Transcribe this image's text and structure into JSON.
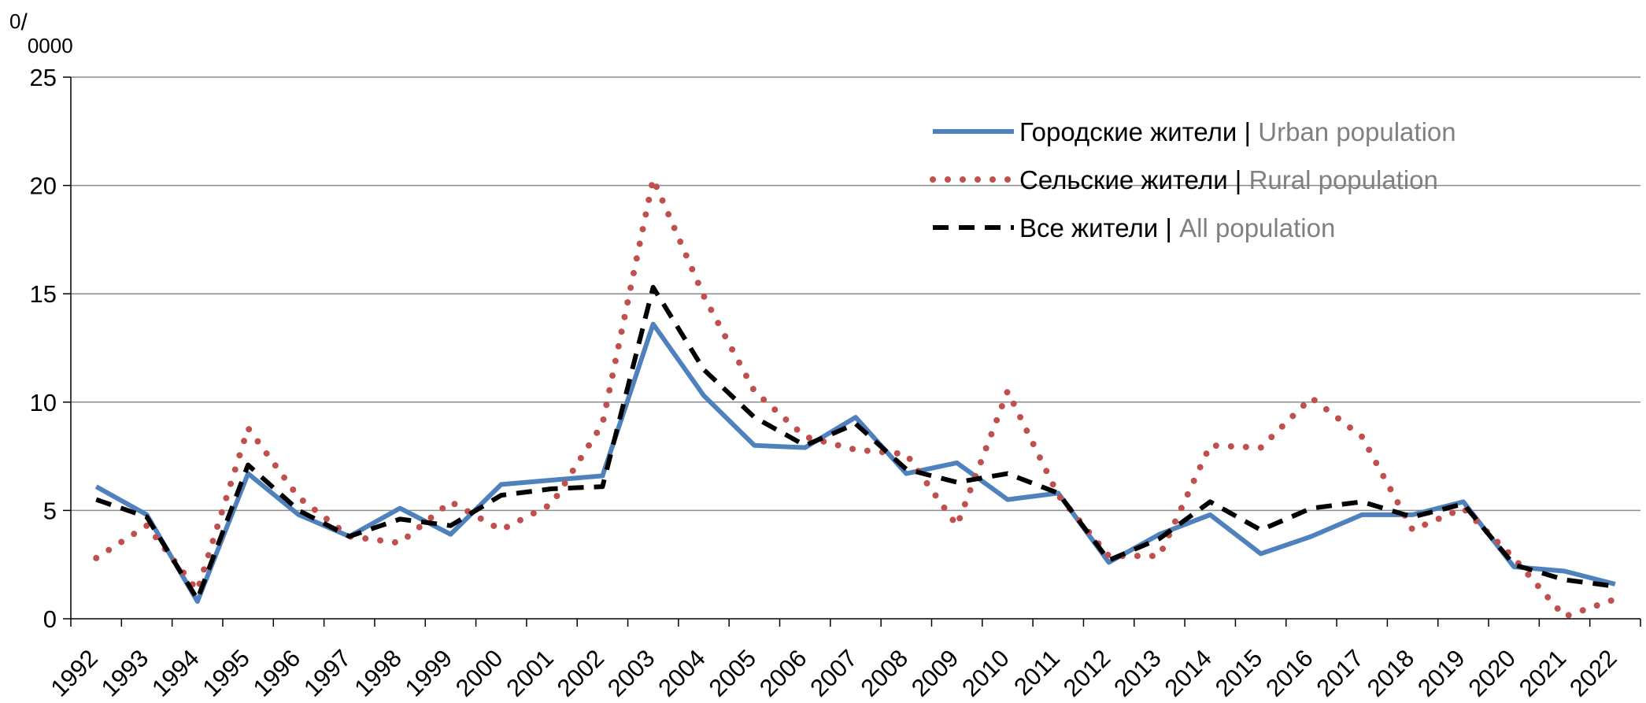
{
  "chart_data": {
    "type": "line",
    "unit": {
      "sup": "0",
      "slash": "/",
      "sub": "0000"
    },
    "x": [
      "1992",
      "1993",
      "1994",
      "1995",
      "1996",
      "1997",
      "1998",
      "1999",
      "2000",
      "2001",
      "2002",
      "2003",
      "2004",
      "2005",
      "2006",
      "2007",
      "2008",
      "2009",
      "2010",
      "2011",
      "2012",
      "2013",
      "2014",
      "2015",
      "2016",
      "2017",
      "2018",
      "2019",
      "2020",
      "2021",
      "2022"
    ],
    "yticks": [
      0,
      5,
      10,
      15,
      20,
      25
    ],
    "ylim": [
      0,
      25
    ],
    "grid": true,
    "legend_position": "top-right",
    "series": [
      {
        "name": "Городские жители",
        "name_en": "Urban population",
        "style": "solid",
        "color": "#4f81bd",
        "values": [
          6.1,
          4.8,
          0.8,
          6.7,
          4.8,
          3.8,
          5.1,
          3.9,
          6.2,
          6.4,
          6.6,
          13.6,
          10.3,
          8.0,
          7.9,
          9.3,
          6.7,
          7.2,
          5.5,
          5.8,
          2.6,
          3.9,
          4.8,
          3.0,
          3.8,
          4.8,
          4.8,
          5.4,
          2.4,
          2.2,
          1.6
        ]
      },
      {
        "name": "Сельские жители",
        "name_en": "Rural population",
        "style": "dotted",
        "color": "#c0504d",
        "values": [
          2.8,
          4.3,
          1.3,
          8.8,
          5.6,
          3.8,
          3.5,
          5.4,
          4.1,
          5.3,
          9.0,
          20.3,
          14.9,
          10.5,
          8.4,
          7.8,
          7.6,
          4.3,
          10.5,
          5.7,
          2.9,
          2.9,
          8.0,
          7.9,
          10.2,
          8.4,
          4.1,
          5.1,
          2.8,
          0.1,
          0.9
        ]
      },
      {
        "name": "Все жители",
        "name_en": "All population",
        "style": "dashed",
        "color": "#000000",
        "values": [
          5.5,
          4.7,
          0.9,
          7.1,
          5.0,
          3.8,
          4.6,
          4.3,
          5.7,
          6.0,
          6.1,
          15.3,
          11.5,
          9.3,
          8.0,
          9.0,
          6.9,
          6.3,
          6.7,
          5.8,
          2.7,
          3.7,
          5.4,
          4.1,
          5.1,
          5.4,
          4.7,
          5.3,
          2.5,
          1.8,
          1.5
        ]
      }
    ],
    "legend_separator": " | ",
    "legend_en_color": "#808080"
  }
}
